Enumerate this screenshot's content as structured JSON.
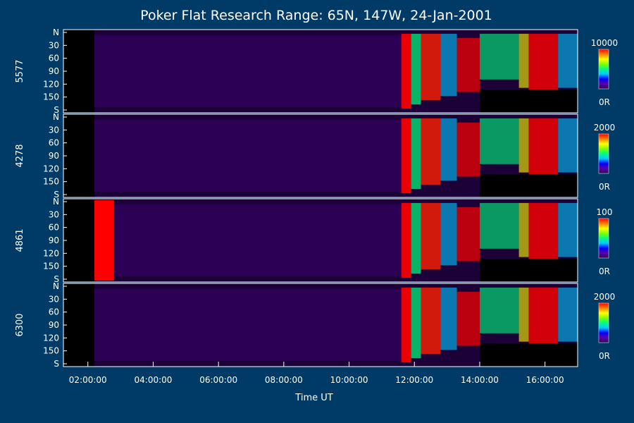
{
  "chart_data": {
    "type": "heatmap",
    "title": "Poker Flat Research Range: 65N, 147W, 24-Jan-2001",
    "xlabel": "Time UT",
    "x_ticks": [
      "02:00:00",
      "04:00:00",
      "06:00:00",
      "08:00:00",
      "10:00:00",
      "12:00:00",
      "14:00:00",
      "16:00:00"
    ],
    "x_range_hours": [
      1.25,
      17.0
    ],
    "y_range_deg": [
      0,
      180
    ],
    "y_ticks": [
      "N",
      "30",
      "60",
      "90",
      "120",
      "150",
      "S"
    ],
    "panels": [
      {
        "label": "5577",
        "scale_max": "10000",
        "scale_min": "0R"
      },
      {
        "label": "4278",
        "scale_max": "2000",
        "scale_min": "0R"
      },
      {
        "label": "4861",
        "scale_max": "100",
        "scale_min": "0R"
      },
      {
        "label": "6300",
        "scale_max": "2000",
        "scale_min": "0R"
      }
    ],
    "colorbar_colors": [
      "#2a0050",
      "#5a00a8",
      "#0000ff",
      "#00c8ff",
      "#00ff80",
      "#80ff00",
      "#ffff00",
      "#ff8000",
      "#ff0000"
    ],
    "background_color": "#003a66",
    "grid": false
  }
}
